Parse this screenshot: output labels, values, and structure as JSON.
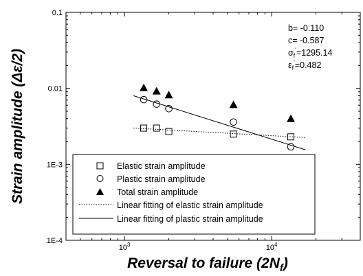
{
  "chart_data": {
    "type": "scatter",
    "title": "",
    "xlabel": "Reversal to failure (2N",
    "xlabel_sub": "f",
    "xlabel_close": ")",
    "ylabel": "Strain amplitude (",
    "ylabel_sym": "Δε/2",
    "ylabel_close": ")",
    "x_scale": "log",
    "y_scale": "log",
    "xlim": [
      400,
      40000
    ],
    "ylim": [
      0.0001,
      0.1
    ],
    "x_ticks": [
      {
        "value": 1000,
        "base": "10",
        "exp": "3"
      },
      {
        "value": 10000,
        "base": "10",
        "exp": "4"
      }
    ],
    "y_ticks": [
      {
        "value": 0.1,
        "label": "0.1"
      },
      {
        "value": 0.01,
        "label": "0.01"
      },
      {
        "value": 0.001,
        "label": "1E-3"
      },
      {
        "value": 0.0001,
        "label": "1E-4"
      }
    ],
    "grid": false,
    "series": [
      {
        "name": "Elastic strain amplitude",
        "marker": "open-square",
        "x": [
          1350,
          1650,
          2000,
          5500,
          13500
        ],
        "y": [
          0.003,
          0.003,
          0.0027,
          0.0025,
          0.0023
        ]
      },
      {
        "name": "Plastic strain amplitude",
        "marker": "open-circle",
        "x": [
          1350,
          1650,
          2000,
          5500,
          13500
        ],
        "y": [
          0.0071,
          0.0062,
          0.0054,
          0.0036,
          0.0017
        ]
      },
      {
        "name": "Total strain amplitude",
        "marker": "filled-triangle",
        "x": [
          1350,
          1650,
          2000,
          5500,
          13500
        ],
        "y": [
          0.0102,
          0.0092,
          0.0082,
          0.0061,
          0.004
        ]
      }
    ],
    "fits": [
      {
        "name": "Linear fitting of elastic strain amplitude",
        "style": "dotted",
        "x": [
          1150,
          17000
        ],
        "y": [
          0.003,
          0.00225
        ]
      },
      {
        "name": "Linear fitting of plastic strain amplitude",
        "style": "solid",
        "x": [
          1150,
          17000
        ],
        "y": [
          0.008,
          0.00155
        ]
      }
    ],
    "legend_position": "bottom-left",
    "parameters": [
      {
        "label": "b= -0.110"
      },
      {
        "label": "c= -0.587"
      },
      {
        "label": "σ",
        "sub": "f",
        "sup": "'",
        "value": "=1295.14"
      },
      {
        "label": "ε",
        "sub": "f",
        "sup": "'",
        "value": "=0.482"
      }
    ]
  }
}
